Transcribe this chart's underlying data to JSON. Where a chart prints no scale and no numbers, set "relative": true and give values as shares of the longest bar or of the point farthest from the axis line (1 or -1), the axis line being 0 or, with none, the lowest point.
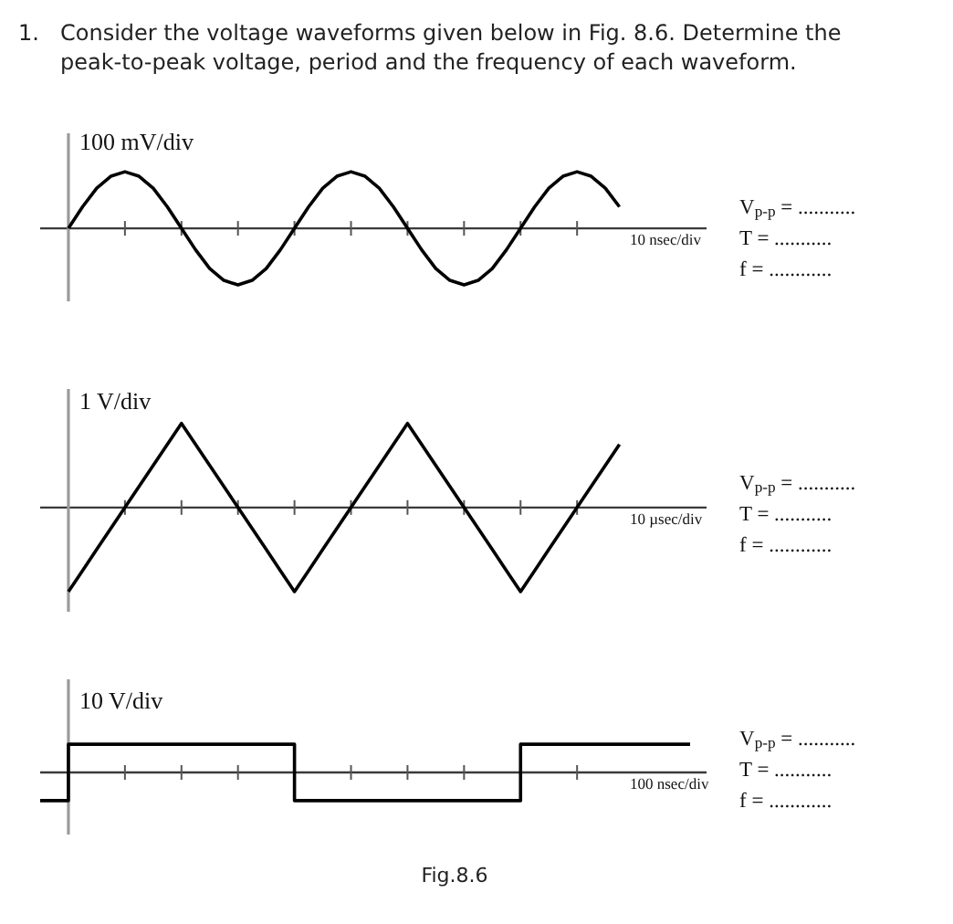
{
  "chart_data": [
    {
      "type": "line",
      "title": "1. Consider the voltage waveforms given below in Fig. 8.6. Determine the peak-to-peak voltage, period and the frequency of each waveform.",
      "xlabel": "10 nsec/div",
      "ylabel": "100 mV/div",
      "relative": true,
      "color": "#000000",
      "categories": [
        null,
        null,
        null,
        null,
        null,
        null,
        null,
        null,
        null,
        null,
        null,
        null,
        null,
        null,
        null,
        null,
        null,
        null,
        null,
        null,
        null,
        null,
        null,
        null,
        null,
        null,
        null,
        null,
        null,
        null,
        null,
        null,
        null,
        null,
        null,
        null,
        null,
        null,
        null,
        null,
        null,
        null,
        null,
        null,
        null,
        null,
        null
      ],
      "values": [
        null,
        null,
        0,
        0.38,
        0.71,
        0.92,
        1,
        0.92,
        0.71,
        0.38,
        0,
        -0.38,
        -0.71,
        -0.92,
        -1,
        -0.92,
        -0.71,
        -0.38,
        0,
        0.38,
        0.71,
        0.92,
        1,
        0.92,
        0.71,
        0.38,
        0,
        -0.38,
        -0.71,
        -0.92,
        -1,
        -0.92,
        -0.71,
        -0.38,
        0,
        0.38,
        0.71,
        0.92,
        1,
        0.92,
        0.71,
        0.38,
        null,
        null,
        null,
        null,
        null
      ],
      "annotations": [
        "V$_{p-p}$ = ...........",
        "T = ...........",
        "f = ............"
      ]
    },
    {
      "type": "line",
      "xlabel": "10 µsec/div",
      "ylabel": "1 V/div",
      "relative": true,
      "color": "#000000",
      "categories": [
        null,
        null,
        null,
        null,
        null,
        null,
        null,
        null,
        null,
        null,
        null,
        null,
        null,
        null,
        null,
        null,
        null,
        null,
        null,
        null,
        null,
        null,
        null,
        null,
        null,
        null,
        null,
        null,
        null,
        null,
        null,
        null,
        null,
        null,
        null,
        null,
        null,
        null,
        null,
        null,
        null,
        null,
        null,
        null,
        null,
        null,
        null
      ],
      "values": [
        null,
        null,
        -1,
        -0.75,
        -0.5,
        -0.25,
        0,
        0.25,
        0.5,
        0.75,
        1,
        0.75,
        0.5,
        0.25,
        0,
        -0.25,
        -0.5,
        -0.75,
        -1,
        -0.75,
        -0.5,
        -0.25,
        0,
        0.25,
        0.5,
        0.75,
        1,
        0.75,
        0.5,
        0.25,
        0,
        -0.25,
        -0.5,
        -0.75,
        -1,
        -0.75,
        -0.5,
        -0.25,
        0,
        0.25,
        0.5,
        0.75,
        null,
        null,
        null,
        null,
        null
      ],
      "annotations": [
        "V$_{p-p}$ = ...........",
        "T = ...........",
        "f = ............"
      ]
    },
    {
      "type": "step",
      "xlabel": "100 nsec/div",
      "ylabel": "10 V/div",
      "relative": true,
      "color": "#000000",
      "categories": [
        null,
        null,
        null,
        null,
        null,
        null,
        null,
        null,
        null,
        null,
        null,
        null,
        null,
        null,
        null,
        null,
        null,
        null,
        null,
        null,
        null,
        null,
        null,
        null,
        null,
        null,
        null,
        null,
        null,
        null,
        null,
        null,
        null,
        null,
        null,
        null,
        null,
        null,
        null,
        null,
        null,
        null,
        null,
        null,
        null,
        null,
        null
      ],
      "values": [
        -1,
        -1,
        1,
        1,
        1,
        1,
        1,
        1,
        1,
        1,
        1,
        1,
        1,
        1,
        1,
        1,
        1,
        1,
        -1,
        -1,
        -1,
        -1,
        -1,
        -1,
        -1,
        -1,
        -1,
        -1,
        -1,
        -1,
        -1,
        -1,
        -1,
        -1,
        1,
        1,
        1,
        1,
        1,
        1,
        1,
        1,
        1,
        1,
        1,
        1,
        1
      ],
      "annotations": [
        "V$_{p-p}$ = ...........",
        "T = ...........",
        "f = ............",
        "Fig.8.6"
      ]
    }
  ]
}
